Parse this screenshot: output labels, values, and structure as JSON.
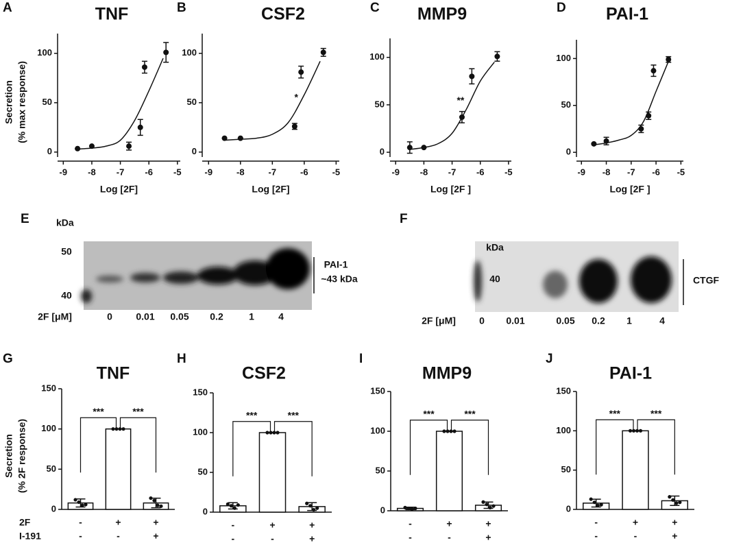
{
  "chart_data": [
    {
      "panel": "A",
      "type": "scatter",
      "title": "TNF",
      "ylabel": [
        "Secretion",
        "(% max response)"
      ],
      "xlabel": "Log [2F]",
      "xlim": [
        -9.2,
        -4.9
      ],
      "xticks": [
        -9,
        -8,
        -7,
        -6,
        -5
      ],
      "ylim": [
        -5,
        120
      ],
      "yticks": [
        0,
        50,
        100
      ],
      "x": [
        -8.5,
        -8,
        -6.7,
        -6.3,
        -6.15,
        -5.4
      ],
      "values": [
        3.5,
        6,
        6,
        25,
        86,
        101
      ],
      "errors": [
        0,
        0,
        4,
        8,
        6,
        10
      ],
      "fit": {
        "x": [
          -8.5,
          -8,
          -7.5,
          -7,
          -6.5,
          -6,
          -5.5
        ],
        "values": [
          3,
          4,
          6,
          12,
          32,
          62,
          95
        ]
      },
      "annotations": []
    },
    {
      "panel": "B",
      "type": "scatter",
      "title": "CSF2",
      "xlabel": "Log [2F]",
      "xlim": [
        -9.2,
        -4.9
      ],
      "xticks": [
        -9,
        -8,
        -7,
        -6,
        -5
      ],
      "ylim": [
        -5,
        120
      ],
      "yticks": [
        0,
        50,
        100
      ],
      "x": [
        -8.5,
        -8,
        -6.3,
        -6.1,
        -5.4
      ],
      "values": [
        14,
        14,
        26,
        81,
        101
      ],
      "errors": [
        0,
        0,
        3,
        6,
        4
      ],
      "fit": {
        "x": [
          -8.5,
          -8,
          -7.5,
          -7,
          -6.5,
          -6,
          -5.5
        ],
        "values": [
          12,
          13,
          14,
          18,
          30,
          58,
          92
        ]
      },
      "annotations": [
        {
          "text": "*",
          "x": -6.25,
          "y": 55
        }
      ]
    },
    {
      "panel": "C",
      "type": "scatter",
      "title": "MMP9",
      "xlabel": "Log [2F ]",
      "xlim": [
        -9.2,
        -4.9
      ],
      "xticks": [
        -9,
        -8,
        -7,
        -6,
        -5
      ],
      "ylim": [
        -5,
        120
      ],
      "yticks": [
        0,
        50,
        100
      ],
      "x": [
        -8.5,
        -8,
        -6.65,
        -6.3,
        -5.4
      ],
      "values": [
        5,
        5,
        37,
        80,
        101
      ],
      "errors": [
        6,
        0,
        6,
        8,
        5
      ],
      "fit": {
        "x": [
          -8.5,
          -8,
          -7.5,
          -7,
          -6.5,
          -6,
          -5.5
        ],
        "values": [
          3,
          5,
          9,
          20,
          45,
          75,
          95
        ]
      },
      "annotations": [
        {
          "text": "**",
          "x": -6.7,
          "y": 54
        }
      ]
    },
    {
      "panel": "D",
      "type": "scatter",
      "title": "PAI-1",
      "xlabel": "Log [2F ]",
      "xlim": [
        -9.2,
        -4.9
      ],
      "xticks": [
        -9,
        -8,
        -7,
        -6,
        -5
      ],
      "ylim": [
        -5,
        120
      ],
      "yticks": [
        0,
        50,
        100
      ],
      "x": [
        -8.5,
        -8,
        -6.6,
        -6.3,
        -6.1,
        -5.5
      ],
      "values": [
        9,
        12,
        25,
        39,
        87,
        99
      ],
      "errors": [
        0,
        4,
        4,
        4,
        6,
        3
      ],
      "fit": {
        "x": [
          -8.5,
          -8,
          -7.5,
          -7,
          -6.5,
          -6,
          -5.5
        ],
        "values": [
          8,
          10,
          13,
          18,
          33,
          65,
          97
        ]
      },
      "annotations": []
    },
    {
      "panel": "G",
      "type": "bar",
      "title": "TNF",
      "ylabel": [
        "Secretion",
        "(% 2F response)"
      ],
      "ylim": [
        0,
        150
      ],
      "yticks": [
        0,
        50,
        100,
        150
      ],
      "values": [
        8,
        100,
        8
      ],
      "errors": [
        5,
        0,
        6
      ],
      "points": [
        [
          12,
          9,
          5,
          6
        ],
        [
          100,
          100,
          100,
          100
        ],
        [
          14,
          11,
          5,
          4
        ]
      ],
      "annotations": [
        "***",
        "***"
      ],
      "conditions": [
        {
          "name": "2F",
          "values": [
            "-",
            "+",
            "+"
          ]
        },
        {
          "name": "I-191",
          "values": [
            "-",
            "-",
            "+"
          ]
        }
      ]
    },
    {
      "panel": "H",
      "type": "bar",
      "title": "CSF2",
      "ylim": [
        0,
        150
      ],
      "yticks": [
        0,
        50,
        100,
        150
      ],
      "values": [
        8,
        100,
        7
      ],
      "errors": [
        4,
        0,
        5
      ],
      "points": [
        [
          10,
          8,
          5,
          9
        ],
        [
          100,
          100,
          100,
          100
        ],
        [
          11,
          8,
          3,
          5
        ]
      ],
      "annotations": [
        "***",
        "***"
      ],
      "conditions": [
        {
          "values": [
            "-",
            "+",
            "+"
          ]
        },
        {
          "values": [
            "-",
            "-",
            "+"
          ]
        }
      ]
    },
    {
      "panel": "I",
      "type": "bar",
      "title": "MMP9",
      "ylim": [
        0,
        150
      ],
      "yticks": [
        0,
        50,
        100,
        150
      ],
      "values": [
        3,
        100,
        7
      ],
      "errors": [
        1.5,
        0,
        4
      ],
      "points": [
        [
          4,
          3,
          2,
          3
        ],
        [
          100,
          100,
          100,
          100
        ],
        [
          11,
          8,
          4,
          6
        ]
      ],
      "annotations": [
        "***",
        "***"
      ],
      "conditions": [
        {
          "values": [
            "-",
            "+",
            "+"
          ]
        },
        {
          "values": [
            "-",
            "-",
            "+"
          ]
        }
      ]
    },
    {
      "panel": "J",
      "type": "bar",
      "title": "PAI-1",
      "ylim": [
        0,
        150
      ],
      "yticks": [
        0,
        50,
        100,
        150
      ],
      "values": [
        8,
        100,
        11
      ],
      "errors": [
        5,
        0,
        6
      ],
      "points": [
        [
          13,
          9,
          5,
          6
        ],
        [
          100,
          100,
          100,
          100
        ],
        [
          16,
          12,
          8,
          9
        ]
      ],
      "annotations": [
        "***",
        "***"
      ],
      "conditions": [
        {
          "values": [
            "-",
            "+",
            "+"
          ]
        },
        {
          "values": [
            "-",
            "-",
            "+"
          ]
        }
      ]
    }
  ],
  "blots": [
    {
      "panel": "E",
      "unit": "kDa",
      "markers": [
        "50",
        "40"
      ],
      "lanes_label": "2F [μM]",
      "lanes": [
        "0",
        "0.01",
        "0.05",
        "0.2",
        "1",
        "4"
      ],
      "band_label": [
        "PAI-1",
        "~43 kDa"
      ]
    },
    {
      "panel": "F",
      "unit": "kDa",
      "markers": [
        "40"
      ],
      "lanes_label": "2F [μM]",
      "lanes": [
        "0",
        "0.01",
        "0.05",
        "0.2",
        "1",
        "4"
      ],
      "band_label": [
        "CTGF"
      ]
    }
  ]
}
